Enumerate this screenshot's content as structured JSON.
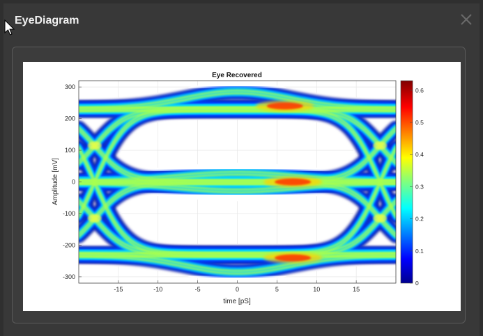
{
  "window": {
    "title": "EyeDiagram",
    "close_icon": "close-icon"
  },
  "colors": {
    "window_bg": "#383838",
    "figure_bg": "#ffffff",
    "plot_bg": "#ffffff"
  },
  "chart_data": {
    "type": "heatmap",
    "title": "Eye Recovered",
    "xlabel": "time [pS]",
    "ylabel": "Amplitude [mV]",
    "xlim": [
      -20,
      20
    ],
    "ylim": [
      -320,
      320
    ],
    "x_ticks": [
      -15,
      -10,
      -5,
      0,
      5,
      10,
      15
    ],
    "x_tick_labels": [
      "-15",
      "-10",
      "-5",
      "0",
      "5",
      "10",
      "15"
    ],
    "y_ticks": [
      300,
      200,
      100,
      0,
      -100,
      -200,
      -300
    ],
    "y_tick_labels": [
      "300",
      "200",
      "100",
      "0",
      "-100",
      "-200",
      "-300"
    ],
    "grid": true,
    "colormap": "jet",
    "colorbar": {
      "limits": [
        0,
        0.63
      ],
      "ticks": [
        0,
        0.1,
        0.2,
        0.3,
        0.4,
        0.5,
        0.6
      ],
      "tick_labels": [
        "0",
        "0.1",
        "0.2",
        "0.3",
        "0.4",
        "0.5",
        "0.6"
      ]
    },
    "levels_mV": [
      -230,
      0,
      230
    ],
    "eye_crossing_times_pS": [
      -18,
      18
    ],
    "peak_density_locations": [
      {
        "x": 6,
        "y": 240,
        "value": 0.6
      },
      {
        "x": 7,
        "y": 0,
        "value": 0.62
      },
      {
        "x": 7,
        "y": -240,
        "value": 0.6
      }
    ]
  }
}
